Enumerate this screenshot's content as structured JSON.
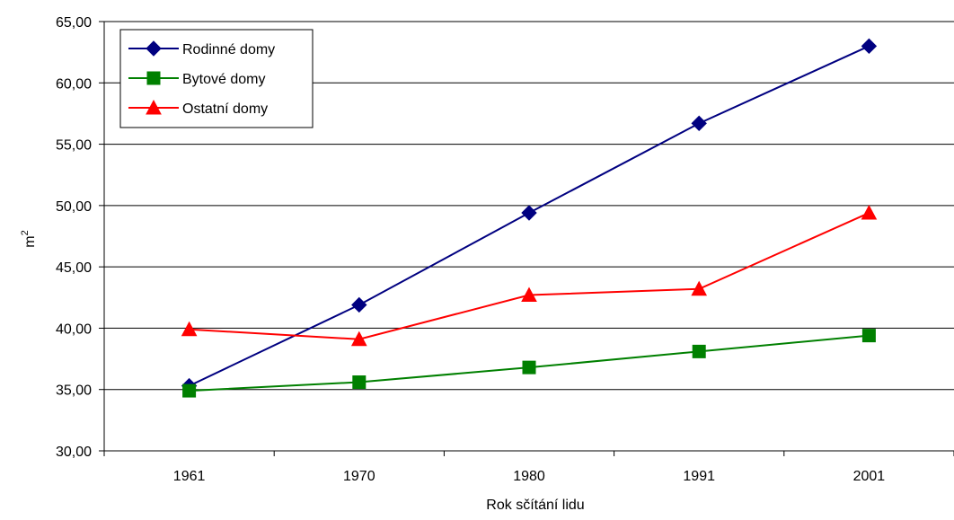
{
  "chart_data": {
    "type": "line",
    "title": "",
    "xlabel": "Rok sčítání lidu",
    "ylabel": "m",
    "ylabel_superscript": "2",
    "categories": [
      "1961",
      "1970",
      "1980",
      "1991",
      "2001"
    ],
    "ylim": [
      30,
      65
    ],
    "yticks": [
      "30,00",
      "35,00",
      "40,00",
      "45,00",
      "50,00",
      "55,00",
      "60,00",
      "65,00"
    ],
    "grid": true,
    "legend_position": "top-left",
    "series": [
      {
        "name": "Rodinné domy",
        "color": "#000080",
        "marker": "diamond",
        "values": [
          35.3,
          41.9,
          49.4,
          56.7,
          63.0
        ]
      },
      {
        "name": "Bytové domy",
        "color": "#008000",
        "marker": "square",
        "values": [
          34.9,
          35.6,
          36.8,
          38.1,
          39.4
        ]
      },
      {
        "name": "Ostatní domy",
        "color": "#ff0000",
        "marker": "triangle",
        "values": [
          39.9,
          39.1,
          42.7,
          43.2,
          49.4
        ]
      }
    ]
  }
}
